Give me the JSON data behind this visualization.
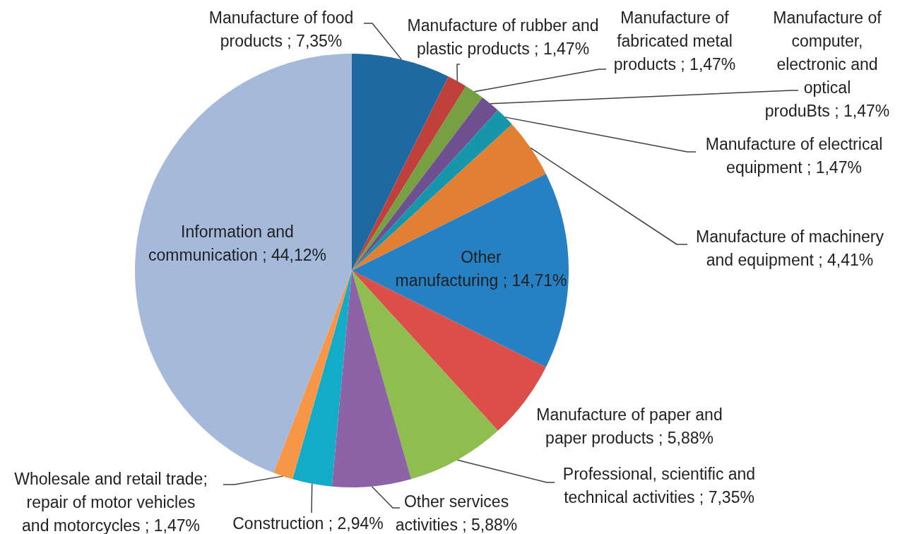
{
  "chart_data": {
    "type": "pie",
    "categories": [
      "Manufacture of food products",
      "Manufacture of rubber and plastic products",
      "Manufacture of fabricated metal products",
      "Manufacture of computer, electronic and optical produBts",
      "Manufacture of electrical equipment",
      "Manufacture of machinery and equipment",
      "Other manufacturing",
      "Manufacture of paper and paper products",
      "Professional, scientific and technical activities",
      "Other services activities",
      "Construction",
      "Wholesale and retail trade; repair of motor vehicles and motorcycles",
      "Information and communication"
    ],
    "values": [
      7.35,
      1.47,
      1.47,
      1.47,
      1.47,
      4.41,
      14.71,
      5.88,
      7.35,
      5.88,
      2.94,
      1.47,
      44.12
    ],
    "value_labels": [
      "7,35%",
      "1,47%",
      "1,47%",
      "1,47%",
      "1,47%",
      "4,41%",
      "14,71%",
      "5,88%",
      "7,35%",
      "5,88%",
      "2,94%",
      "1,47%",
      "44,12%"
    ],
    "colors": [
      "#1f69a2",
      "#c0403c",
      "#77a043",
      "#6e4f8f",
      "#1796ab",
      "#e37f33",
      "#2680c4",
      "#dc4f48",
      "#8fbd4f",
      "#8b63a6",
      "#14abc8",
      "#f79646",
      "#a5b9da"
    ]
  }
}
